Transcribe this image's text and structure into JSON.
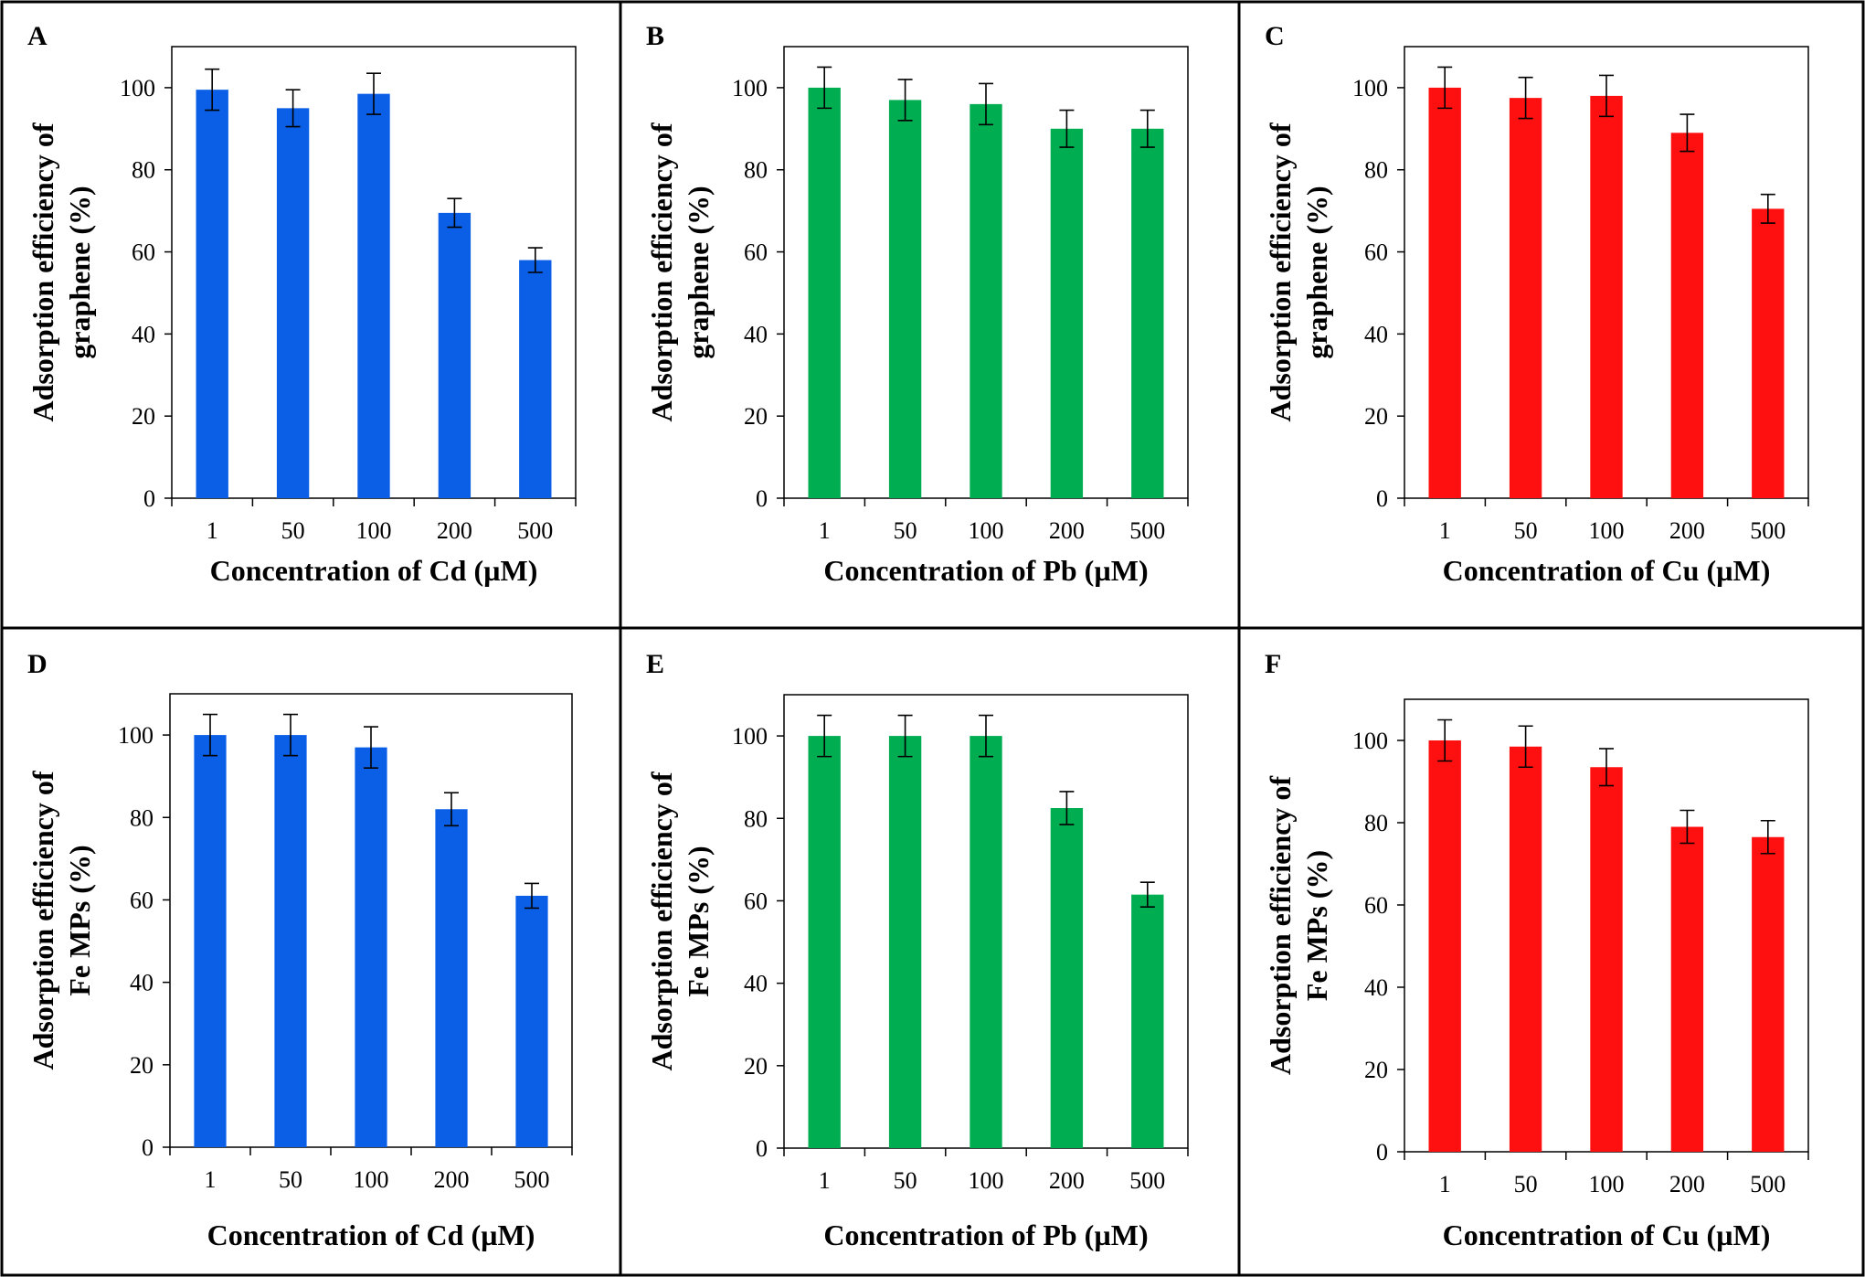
{
  "colors": {
    "Cd": "#0a5fe6",
    "Pb": "#00ad50",
    "Cu": "#ff1010"
  },
  "chart_data": [
    {
      "type": "bar",
      "panel": "A",
      "metal": "Cd",
      "categories": [
        "1",
        "50",
        "100",
        "200",
        "500"
      ],
      "values": [
        99.5,
        95,
        98.5,
        69.5,
        58
      ],
      "errors": [
        5,
        4.5,
        5,
        3.5,
        3
      ],
      "ylim": [
        0,
        110
      ],
      "yticks": [
        0,
        20,
        40,
        60,
        80,
        100
      ],
      "ylabel_lines": [
        "Adsorption efficiency of",
        "graphene (%)"
      ],
      "xlabel": "Concentration of Cd (µM)"
    },
    {
      "type": "bar",
      "panel": "B",
      "metal": "Pb",
      "categories": [
        "1",
        "50",
        "100",
        "200",
        "500"
      ],
      "values": [
        100,
        97,
        96,
        90,
        90
      ],
      "errors": [
        5,
        5,
        5,
        4.5,
        4.5
      ],
      "ylim": [
        0,
        110
      ],
      "yticks": [
        0,
        20,
        40,
        60,
        80,
        100
      ],
      "ylabel_lines": [
        "Adsorption efficiency of",
        "graphene (%)"
      ],
      "xlabel": "Concentration of Pb (µM)"
    },
    {
      "type": "bar",
      "panel": "C",
      "metal": "Cu",
      "categories": [
        "1",
        "50",
        "100",
        "200",
        "500"
      ],
      "values": [
        100,
        97.5,
        98,
        89,
        70.5
      ],
      "errors": [
        5,
        5,
        5,
        4.5,
        3.5
      ],
      "ylim": [
        0,
        110
      ],
      "yticks": [
        0,
        20,
        40,
        60,
        80,
        100
      ],
      "ylabel_lines": [
        "Adsorption efficiency of",
        "graphene (%)"
      ],
      "xlabel": "Concentration of Cu (µM)"
    },
    {
      "type": "bar",
      "panel": "D",
      "metal": "Cd",
      "categories": [
        "1",
        "50",
        "100",
        "200",
        "500"
      ],
      "values": [
        100,
        100,
        97,
        82,
        61
      ],
      "errors": [
        5,
        5,
        5,
        4,
        3
      ],
      "ylim": [
        0,
        110
      ],
      "yticks": [
        0,
        20,
        40,
        60,
        80,
        100
      ],
      "ylabel_lines": [
        "Adsorption efficiency of",
        "Fe MPs (%)"
      ],
      "xlabel": "Concentration of Cd (µM)"
    },
    {
      "type": "bar",
      "panel": "E",
      "metal": "Pb",
      "categories": [
        "1",
        "50",
        "100",
        "200",
        "500"
      ],
      "values": [
        100,
        100,
        100,
        82.5,
        61.5
      ],
      "errors": [
        5,
        5,
        5,
        4,
        3
      ],
      "ylim": [
        0,
        110
      ],
      "yticks": [
        0,
        20,
        40,
        60,
        80,
        100
      ],
      "ylabel_lines": [
        "Adsorption efficiency of",
        "Fe MPs (%)"
      ],
      "xlabel": "Concentration of Pb (µM)"
    },
    {
      "type": "bar",
      "panel": "F",
      "metal": "Cu",
      "categories": [
        "1",
        "50",
        "100",
        "200",
        "500"
      ],
      "values": [
        100,
        98.5,
        93.5,
        79,
        76.5
      ],
      "errors": [
        5,
        5,
        4.5,
        4,
        4
      ],
      "ylim": [
        0,
        110
      ],
      "yticks": [
        0,
        20,
        40,
        60,
        80,
        100
      ],
      "ylabel_lines": [
        "Adsorption efficiency of",
        "Fe MPs (%)"
      ],
      "xlabel": "Concentration of Cu (µM)"
    }
  ]
}
